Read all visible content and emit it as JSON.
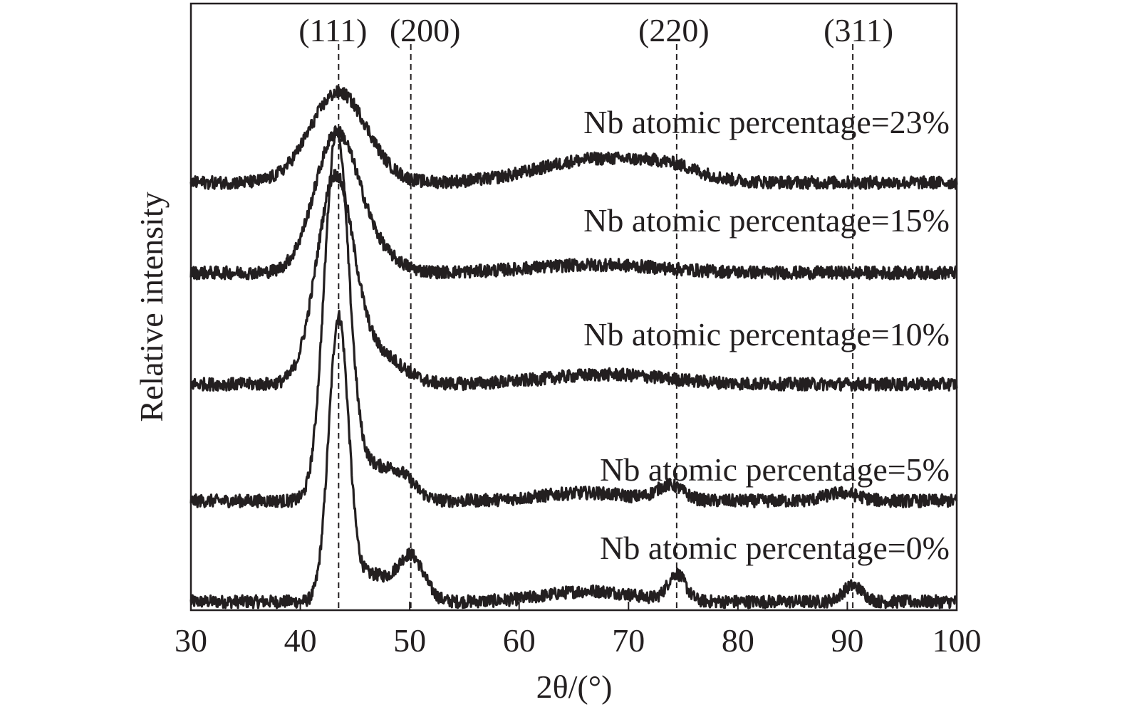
{
  "chart_data": {
    "type": "line",
    "xlabel": "2θ/(°)",
    "ylabel": "Relative intensity",
    "xlim": [
      30,
      100
    ],
    "xticks": [
      30,
      40,
      50,
      60,
      70,
      80,
      90,
      100
    ],
    "yticks_shown": false,
    "grid": false,
    "legend": "none",
    "line_color": "#231f20",
    "reference_lines": [
      {
        "label": "(111)",
        "x": 43.5
      },
      {
        "label": "(200)",
        "x": 50.1
      },
      {
        "label": "(220)",
        "x": 74.4
      },
      {
        "label": "(311)",
        "x": 90.5
      }
    ],
    "series": [
      {
        "name": "Nb atomic percentage=0%",
        "baseline": 0.0,
        "noise": 0.012,
        "peaks": [
          {
            "x": 43.5,
            "height": 0.53,
            "width": 0.9
          },
          {
            "x": 46.5,
            "height": 0.05,
            "width": 1.6
          },
          {
            "x": 50.1,
            "height": 0.085,
            "width": 1.2
          },
          {
            "x": 66.5,
            "height": 0.02,
            "width": 4.0
          },
          {
            "x": 74.4,
            "height": 0.05,
            "width": 0.8
          },
          {
            "x": 90.5,
            "height": 0.03,
            "width": 0.9
          }
        ]
      },
      {
        "name": "Nb atomic percentage=5%",
        "baseline": 0.19,
        "noise": 0.012,
        "peaks": [
          {
            "x": 43.3,
            "height": 0.69,
            "width": 1.1
          },
          {
            "x": 46.0,
            "height": 0.06,
            "width": 1.5
          },
          {
            "x": 49.0,
            "height": 0.05,
            "width": 1.4
          },
          {
            "x": 66.0,
            "height": 0.015,
            "width": 4.0
          },
          {
            "x": 73.8,
            "height": 0.028,
            "width": 1.2
          },
          {
            "x": 89.5,
            "height": 0.015,
            "width": 1.5
          }
        ]
      },
      {
        "name": "Nb atomic percentage=10%",
        "baseline": 0.41,
        "noise": 0.012,
        "peaks": [
          {
            "x": 43.2,
            "height": 0.39,
            "width": 1.7
          },
          {
            "x": 47.5,
            "height": 0.05,
            "width": 2.0
          },
          {
            "x": 68.0,
            "height": 0.018,
            "width": 5.5
          }
        ]
      },
      {
        "name": "Nb atomic percentage=15%",
        "baseline": 0.62,
        "noise": 0.012,
        "peaks": [
          {
            "x": 43.3,
            "height": 0.26,
            "width": 2.0
          },
          {
            "x": 47.0,
            "height": 0.03,
            "width": 2.0
          },
          {
            "x": 67.0,
            "height": 0.015,
            "width": 6.0
          }
        ]
      },
      {
        "name": "Nb atomic percentage=23%",
        "baseline": 0.79,
        "noise": 0.012,
        "peaks": [
          {
            "x": 43.5,
            "height": 0.17,
            "width": 2.6
          },
          {
            "x": 67.5,
            "height": 0.045,
            "width": 5.5
          },
          {
            "x": 74.0,
            "height": 0.015,
            "width": 2.5
          }
        ]
      }
    ]
  }
}
